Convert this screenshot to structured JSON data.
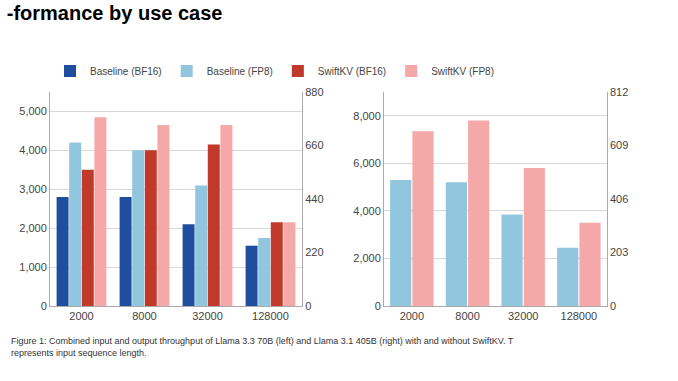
{
  "chart_data": [
    {
      "type": "bar",
      "title": "-formance by use case",
      "categories": [
        "2000",
        "8000",
        "32000",
        "128000"
      ],
      "series": [
        {
          "name": "Baseline (BF16)",
          "color": "#1f4e9e",
          "values": [
            2800,
            2800,
            2100,
            1550
          ]
        },
        {
          "name": "Baseline (FP8)",
          "color": "#92c5de",
          "values": [
            4200,
            4000,
            3100,
            1750
          ]
        },
        {
          "name": "SwiftKV (BF16)",
          "color": "#c0392b",
          "values": [
            3500,
            4000,
            4150,
            2150
          ]
        },
        {
          "name": "SwiftKV (FP8)",
          "color": "#f4a9a8",
          "values": [
            4850,
            4650,
            4650,
            2150
          ]
        }
      ],
      "ylim": [
        0,
        5500
      ],
      "yticks": [
        0,
        {
          "value": 1000,
          "label": "1,000"
        },
        {
          "value": 2000,
          "label": "2,000"
        },
        {
          "value": 3000,
          "label": "3,000"
        },
        {
          "value": 4000,
          "label": "4,000"
        },
        {
          "value": 5000,
          "label": "5,000"
        }
      ],
      "y2lim": [
        0,
        880
      ],
      "y2ticks": [
        0,
        220,
        440,
        660,
        880
      ],
      "grid": true,
      "legend": "top"
    },
    {
      "type": "bar",
      "categories": [
        "2000",
        "8000",
        "32000",
        "128000"
      ],
      "series": [
        {
          "name": "Baseline (FP8)",
          "color": "#92c5de",
          "values": [
            5300,
            5200,
            3850,
            2450
          ]
        },
        {
          "name": "SwiftKV (FP8)",
          "color": "#f4a9a8",
          "values": [
            7350,
            7800,
            5800,
            3500
          ]
        }
      ],
      "ylim": [
        0,
        9000
      ],
      "yticks": [
        0,
        {
          "value": 2000,
          "label": "2,000"
        },
        {
          "value": 4000,
          "label": "4,000"
        },
        {
          "value": 6000,
          "label": "6,000"
        },
        {
          "value": 8000,
          "label": "8,000"
        }
      ],
      "y2lim": [
        0,
        812
      ],
      "y2ticks": [
        0,
        203,
        406,
        609,
        812
      ],
      "grid": true,
      "annotations": [
        "Figure 1: Combined input and output throughput of Llama 3.3 70B (left) and Llama 3.1 405B (right) with and without SwiftKV. T\nrepresents input sequence length."
      ]
    }
  ]
}
